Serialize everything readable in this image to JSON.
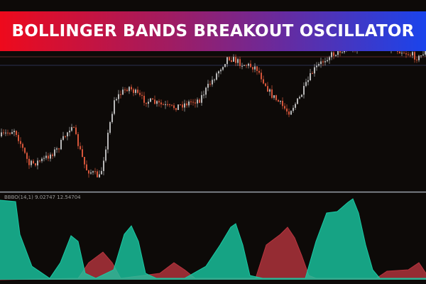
{
  "banner": {
    "title": "BOLLINGER BANDS BREAKOUT OSCILLATOR"
  },
  "indicator": {
    "label": "BBBO(14,1) 9.02747 12.54704"
  },
  "colors": {
    "bull_candle": "#b8b8b8",
    "bear_candle": "#d4553a",
    "osc_bull": "#19c9a4",
    "osc_bear": "#b8343e",
    "background": "#0d0a08",
    "separator": "#9aa0aa"
  },
  "icons": []
}
